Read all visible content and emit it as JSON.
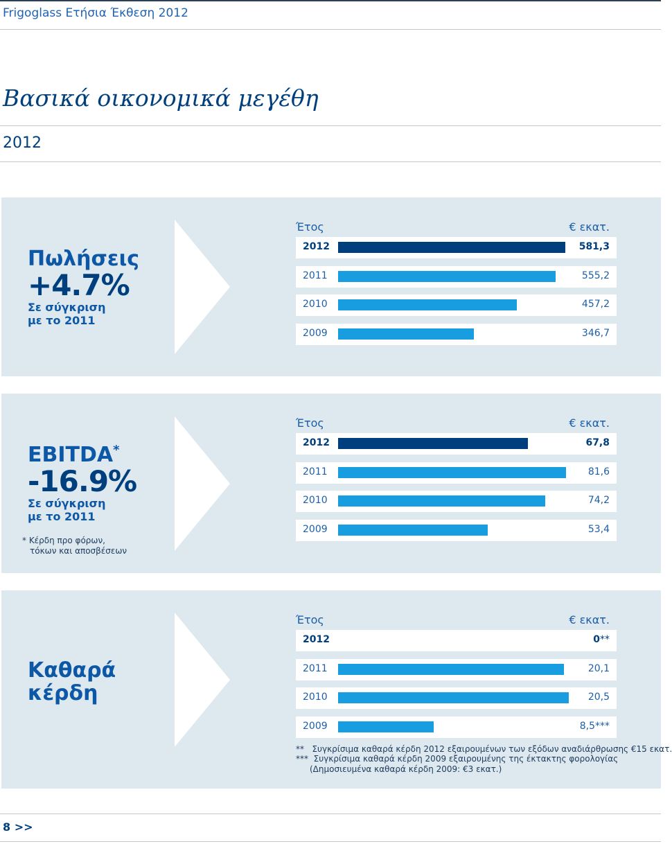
{
  "header": {
    "title": "Frigoglass Ετήσια Έκθεση 2012"
  },
  "page": {
    "title": "Βασικά οικονομικά μεγέθη",
    "year": "2012",
    "number": "8",
    "next": ">>"
  },
  "colors": {
    "latest_bar": "#003f7d",
    "bar": "#189ee0",
    "panel": "#dde8ef"
  },
  "chart_data": [
    {
      "type": "bar",
      "name": "Πωλήσεις",
      "headline": "+4.7%",
      "comparison": [
        "Σε σύγκριση",
        "με το 2011"
      ],
      "col_header": "Έτος",
      "unit": "€ εκατ.",
      "max": 600,
      "rows": [
        {
          "year": "2012",
          "value": 581.3,
          "label": "581,3"
        },
        {
          "year": "2011",
          "value": 555.2,
          "label": "555,2"
        },
        {
          "year": "2010",
          "value": 457.2,
          "label": "457,2"
        },
        {
          "year": "2009",
          "value": 346.7,
          "label": "346,7"
        }
      ]
    },
    {
      "type": "bar",
      "name": "EBITDA",
      "name_sup": "*",
      "headline": "-16.9%",
      "comparison": [
        "Σε σύγκριση",
        "με το 2011"
      ],
      "note": [
        "* Κέρδη προ φόρων,",
        "τόκων και αποσβέσεων"
      ],
      "col_header": "Έτος",
      "unit": "€ εκατ.",
      "max": 84,
      "rows": [
        {
          "year": "2012",
          "value": 67.8,
          "label": "67,8"
        },
        {
          "year": "2011",
          "value": 81.6,
          "label": "81,6"
        },
        {
          "year": "2010",
          "value": 74.2,
          "label": "74,2"
        },
        {
          "year": "2009",
          "value": 53.4,
          "label": "53,4"
        }
      ]
    },
    {
      "type": "bar",
      "name": [
        "Καθαρά",
        "κέρδη"
      ],
      "col_header": "Έτος",
      "unit": "€ εκατ.",
      "max": 20.9,
      "rows": [
        {
          "year": "2012",
          "value": 0,
          "label": "0",
          "suffix": "**"
        },
        {
          "year": "2011",
          "value": 20.1,
          "label": "20,1"
        },
        {
          "year": "2010",
          "value": 20.5,
          "label": "20,5"
        },
        {
          "year": "2009",
          "value": 8.5,
          "label": "8,5",
          "suffix": "***"
        }
      ],
      "footnotes": [
        "**   Συγκρίσιμα καθαρά κέρδη 2012 εξαιρουμένων των εξόδων αναδιάρθρωσης €15 εκατ.",
        "***  Συγκρίσιμα καθαρά κέρδη 2009 εξαιρουμένης της έκτακτης φορολογίας",
        "(Δημοσιευμένα καθαρά κέρδη 2009: €3 εκατ.)"
      ]
    }
  ]
}
